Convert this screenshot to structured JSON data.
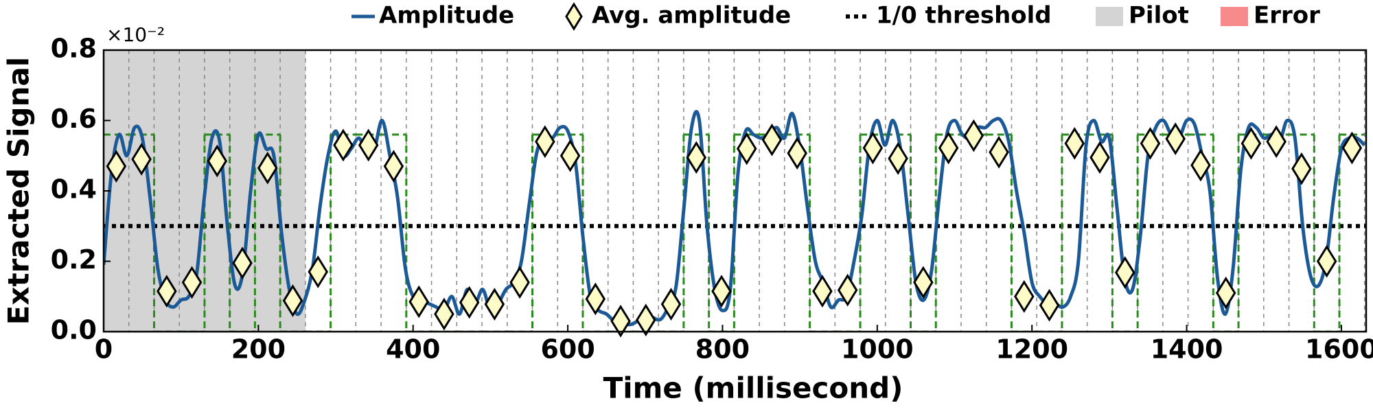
{
  "chart_data": {
    "type": "line",
    "x_label": "Time (millisecond)",
    "y_label": "Extracted Signal",
    "y_multiplier": "×10⁻²",
    "xlim": [
      0,
      1632
    ],
    "ylim": [
      0,
      0.8
    ],
    "xticks": [
      0,
      200,
      400,
      600,
      800,
      1000,
      1200,
      1400,
      1600
    ],
    "yticks": [
      {
        "value": 0,
        "label": "0.0"
      },
      0.2,
      0.4,
      0.6,
      0.8
    ],
    "series": [
      {
        "name": "Amplitude",
        "color": "#1b5a96",
        "type": "line",
        "x": [
          0,
          10,
          20,
          30,
          40,
          50,
          60,
          70,
          80,
          90,
          100,
          110,
          120,
          130,
          140,
          150,
          160,
          170,
          180,
          190,
          200,
          210,
          220,
          230,
          240,
          250,
          260,
          270,
          280,
          290,
          300,
          310,
          320,
          330,
          340,
          350,
          360,
          370,
          380,
          390,
          400,
          410,
          420,
          430,
          440,
          450,
          460,
          470,
          480,
          490,
          500,
          510,
          520,
          530,
          540,
          550,
          560,
          570,
          580,
          590,
          600,
          610,
          620,
          630,
          640,
          650,
          660,
          670,
          680,
          690,
          700,
          710,
          720,
          730,
          740,
          750,
          760,
          770,
          780,
          790,
          800,
          810,
          820,
          830,
          840,
          850,
          860,
          870,
          880,
          890,
          900,
          910,
          920,
          930,
          940,
          950,
          960,
          970,
          980,
          990,
          1000,
          1010,
          1020,
          1030,
          1040,
          1050,
          1060,
          1070,
          1080,
          1090,
          1100,
          1110,
          1120,
          1130,
          1140,
          1150,
          1160,
          1170,
          1180,
          1190,
          1200,
          1210,
          1220,
          1230,
          1240,
          1250,
          1260,
          1270,
          1280,
          1290,
          1300,
          1310,
          1320,
          1330,
          1340,
          1350,
          1360,
          1370,
          1380,
          1390,
          1400,
          1410,
          1420,
          1430,
          1440,
          1450,
          1460,
          1470,
          1480,
          1490,
          1500,
          1510,
          1520,
          1530,
          1540,
          1550,
          1560,
          1570,
          1580,
          1590,
          1600,
          1610,
          1620,
          1630
        ],
        "values": [
          0.19,
          0.45,
          0.56,
          0.5,
          0.58,
          0.55,
          0.38,
          0.18,
          0.09,
          0.07,
          0.09,
          0.1,
          0.16,
          0.38,
          0.55,
          0.54,
          0.3,
          0.13,
          0.17,
          0.4,
          0.56,
          0.52,
          0.5,
          0.28,
          0.12,
          0.05,
          0.09,
          0.18,
          0.36,
          0.5,
          0.57,
          0.5,
          0.52,
          0.55,
          0.51,
          0.52,
          0.6,
          0.5,
          0.38,
          0.18,
          0.1,
          0.09,
          0.08,
          0.07,
          0.06,
          0.1,
          0.05,
          0.12,
          0.08,
          0.12,
          0.06,
          0.08,
          0.12,
          0.14,
          0.2,
          0.36,
          0.51,
          0.55,
          0.55,
          0.58,
          0.57,
          0.48,
          0.26,
          0.09,
          0.06,
          0.05,
          0.03,
          0.025,
          0.02,
          0.03,
          0.05,
          0.04,
          0.035,
          0.07,
          0.13,
          0.35,
          0.58,
          0.6,
          0.3,
          0.12,
          0.06,
          0.12,
          0.45,
          0.57,
          0.56,
          0.55,
          0.56,
          0.58,
          0.55,
          0.62,
          0.52,
          0.35,
          0.2,
          0.14,
          0.07,
          0.09,
          0.1,
          0.2,
          0.33,
          0.53,
          0.6,
          0.53,
          0.6,
          0.52,
          0.33,
          0.14,
          0.09,
          0.17,
          0.38,
          0.56,
          0.6,
          0.56,
          0.55,
          0.58,
          0.58,
          0.6,
          0.6,
          0.54,
          0.4,
          0.28,
          0.14,
          0.1,
          0.08,
          0.08,
          0.07,
          0.1,
          0.2,
          0.53,
          0.6,
          0.54,
          0.55,
          0.35,
          0.15,
          0.12,
          0.27,
          0.5,
          0.58,
          0.6,
          0.56,
          0.55,
          0.6,
          0.59,
          0.5,
          0.4,
          0.15,
          0.05,
          0.18,
          0.46,
          0.58,
          0.58,
          0.55,
          0.56,
          0.54,
          0.6,
          0.55,
          0.3,
          0.16,
          0.13,
          0.2,
          0.38,
          0.52,
          0.55,
          0.55,
          0.53
        ]
      },
      {
        "name": "Avg. amplitude",
        "color": "#fdfbc8",
        "type": "scatter",
        "x": [
          16.3,
          48.9,
          81.5,
          114.1,
          146.7,
          179.3,
          211.9,
          244.5,
          277.1,
          309.7,
          342.3,
          374.9,
          407.5,
          440.1,
          472.7,
          505.3,
          537.9,
          570.5,
          603.1,
          635.7,
          668.3,
          700.9,
          733.5,
          766.1,
          798.7,
          831.3,
          863.9,
          896.5,
          929.1,
          961.7,
          994.3,
          1026.9,
          1059.5,
          1092.1,
          1124.7,
          1157.3,
          1189.9,
          1222.5,
          1255.1,
          1287.7,
          1320.3,
          1352.9,
          1385.5,
          1418.1,
          1450.7,
          1483.3,
          1515.9,
          1548.5,
          1581.1,
          1613.7
        ],
        "values": [
          0.47,
          0.49,
          0.115,
          0.14,
          0.485,
          0.195,
          0.465,
          0.088,
          0.17,
          0.53,
          0.53,
          0.47,
          0.085,
          0.05,
          0.083,
          0.078,
          0.14,
          0.54,
          0.5,
          0.093,
          0.03,
          0.033,
          0.078,
          0.495,
          0.115,
          0.52,
          0.545,
          0.507,
          0.115,
          0.118,
          0.522,
          0.492,
          0.14,
          0.522,
          0.557,
          0.51,
          0.1,
          0.075,
          0.535,
          0.495,
          0.168,
          0.535,
          0.548,
          0.473,
          0.11,
          0.535,
          0.54,
          0.463,
          0.2,
          0.522
        ]
      }
    ],
    "threshold": {
      "name": "1/0 threshold",
      "value": 0.3,
      "color": "#000000"
    },
    "pilot": {
      "name": "Pilot",
      "range": [
        0,
        261
      ],
      "color": "#d4d4d4"
    },
    "error": {
      "name": "Error",
      "color": "#f78a8a"
    },
    "bits": {
      "level": 0.56,
      "color": "#2a8a1e",
      "values": [
        1,
        1,
        0,
        0,
        1,
        0,
        1,
        0,
        0,
        1,
        1,
        1,
        0,
        0,
        0,
        0,
        0,
        1,
        1,
        0,
        0,
        0,
        0,
        1,
        0,
        1,
        1,
        1,
        0,
        0,
        1,
        1,
        0,
        1,
        1,
        1,
        0,
        0,
        1,
        1,
        0,
        1,
        1,
        1,
        0,
        1,
        1,
        1,
        0,
        1
      ]
    }
  }
}
